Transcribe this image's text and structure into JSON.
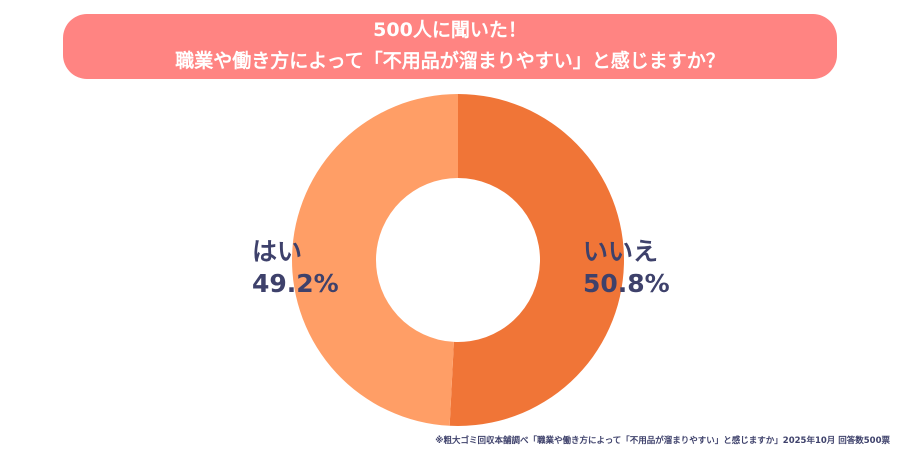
{
  "chart_data": {
    "type": "pie",
    "donut": true,
    "title": [
      "500人に聞いた！",
      "職業や働き方によって「不用品が溜まりやすい」と感じますか？"
    ],
    "categories": [
      "いいえ",
      "はい"
    ],
    "values": [
      50.8,
      49.2
    ],
    "value_labels": [
      "50.8%",
      "49.2%"
    ],
    "colors": [
      "#F07537",
      "#FF9E66"
    ],
    "start": "top",
    "direction": "clockwise"
  },
  "footnote": "※粗大ゴミ回収本舗調べ「職業や働き方によって「不用品が溜まりやすい」と感じますか」2025年10月 回答数500票"
}
